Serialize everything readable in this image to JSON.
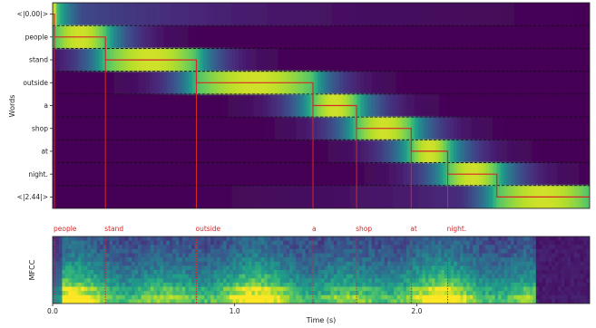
{
  "chart_data": [
    {
      "type": "heatmap",
      "title": "",
      "xlabel": "",
      "ylabel": "Words",
      "xlim": [
        0,
        2.95
      ],
      "rows": [
        "<|0.00|>",
        "people",
        "stand",
        "outside",
        "a",
        "shop",
        "at",
        "night.",
        "<|2.44|>"
      ],
      "row_spans": [
        {
          "label": "<|0.00|>",
          "start": 0.0,
          "end": 0.01
        },
        {
          "label": "people",
          "start": 0.01,
          "end": 0.29
        },
        {
          "label": "stand",
          "start": 0.29,
          "end": 0.79
        },
        {
          "label": "outside",
          "start": 0.79,
          "end": 1.43
        },
        {
          "label": "a",
          "start": 1.43,
          "end": 1.67
        },
        {
          "label": "shop",
          "start": 1.67,
          "end": 1.97
        },
        {
          "label": "at",
          "start": 1.97,
          "end": 2.17
        },
        {
          "label": "night.",
          "start": 2.17,
          "end": 2.44
        },
        {
          "label": "<|2.44|>",
          "start": 2.44,
          "end": 2.95
        }
      ],
      "alignment_path_color": "#d62728",
      "colormap": "viridis"
    },
    {
      "type": "heatmap",
      "title": "",
      "xlabel": "Time (s)",
      "ylabel": "MFCC",
      "xlim": [
        0,
        2.95
      ],
      "xticks": [
        {
          "value": 0.0,
          "label": "0.0"
        },
        {
          "value": 1.0,
          "label": "1.0"
        },
        {
          "value": 2.0,
          "label": "2.0"
        }
      ],
      "word_markers": [
        {
          "label": "people",
          "time": 0.01
        },
        {
          "label": "stand",
          "time": 0.29
        },
        {
          "label": "outside",
          "time": 0.79
        },
        {
          "label": "a",
          "time": 1.43
        },
        {
          "label": "shop",
          "time": 1.67
        },
        {
          "label": "at",
          "time": 1.97
        },
        {
          "label": "night.",
          "time": 2.17
        }
      ],
      "marker_color": "#d62728",
      "colormap": "viridis"
    }
  ]
}
